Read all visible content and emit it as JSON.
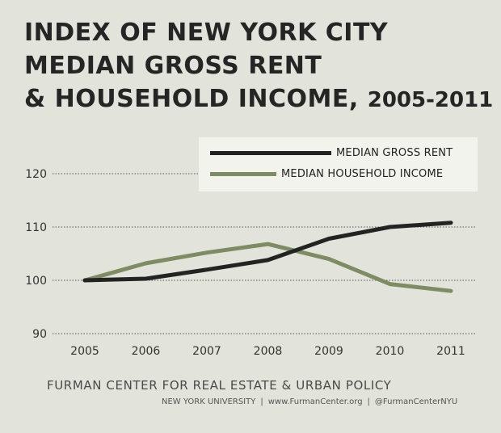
{
  "header": {
    "title_lines": [
      "INDEX OF NEW YORK CITY",
      "MEDIAN GROSS RENT"
    ],
    "title_last_prefix": "& HOUSEHOLD INCOME, ",
    "title_last_years": "2005-2011"
  },
  "colors": {
    "background": "#e2e3da",
    "rent": "#232323",
    "income": "#7e8c64",
    "grid": "#555555"
  },
  "chart_data": {
    "type": "line",
    "title": "INDEX OF NEW YORK CITY MEDIAN GROSS RENT & HOUSEHOLD INCOME, 2005-2011",
    "x": [
      "2005",
      "2006",
      "2007",
      "2008",
      "2009",
      "2010",
      "2011"
    ],
    "ylim": [
      90,
      120
    ],
    "yticks": [
      90,
      100,
      110,
      120
    ],
    "grid": true,
    "legend_position": "top-right",
    "series": [
      {
        "name": "MEDIAN GROSS RENT",
        "color": "#232323",
        "values": [
          100,
          100.3,
          102,
          103.8,
          107.8,
          110,
          110.8
        ]
      },
      {
        "name": "MEDIAN HOUSEHOLD INCOME",
        "color": "#7e8c64",
        "values": [
          100,
          103.2,
          105.2,
          106.8,
          104,
          99.3,
          98
        ]
      }
    ]
  },
  "footer": {
    "org": "FURMAN CENTER FOR REAL ESTATE & URBAN POLICY",
    "university": "NEW YORK UNIVERSITY",
    "website": "www.FurmanCenter.org",
    "twitter": "@FurmanCenterNYU",
    "separator": "|"
  }
}
